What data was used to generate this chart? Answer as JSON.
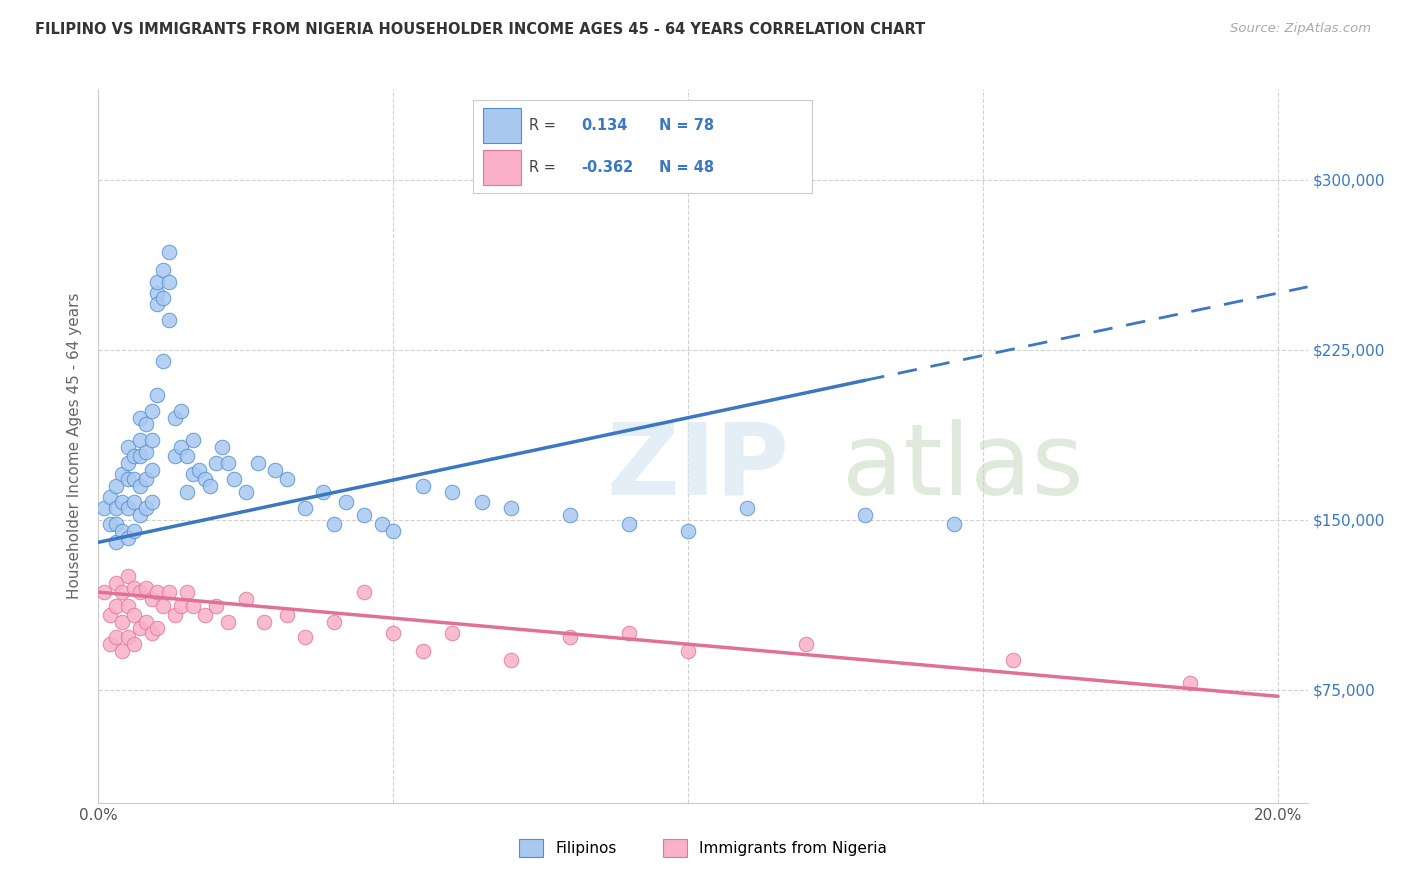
{
  "title": "FILIPINO VS IMMIGRANTS FROM NIGERIA HOUSEHOLDER INCOME AGES 45 - 64 YEARS CORRELATION CHART",
  "source": "Source: ZipAtlas.com",
  "ylabel": "Householder Income Ages 45 - 64 years",
  "xlim": [
    0.0,
    0.205
  ],
  "ylim": [
    25000,
    340000
  ],
  "yticks": [
    75000,
    150000,
    225000,
    300000
  ],
  "ytick_labels_right": [
    "$75,000",
    "$150,000",
    "$225,000",
    "$300,000"
  ],
  "xticks": [
    0.0,
    0.05,
    0.1,
    0.15,
    0.2
  ],
  "xtick_labels": [
    "0.0%",
    "",
    "",
    "",
    "20.0%"
  ],
  "blue_R": 0.134,
  "blue_N": 78,
  "pink_R": -0.362,
  "pink_N": 48,
  "blue_fill": "#A8C8F0",
  "pink_fill": "#F9B0C8",
  "blue_edge": "#5090D0",
  "pink_edge": "#E07898",
  "blue_line": "#3A78C3",
  "pink_line": "#E07098",
  "grid_color": "#CCCCCC",
  "legend1_label": "Filipinos",
  "legend2_label": "Immigrants from Nigeria",
  "blue_scatter_x": [
    0.001,
    0.002,
    0.002,
    0.003,
    0.003,
    0.003,
    0.003,
    0.004,
    0.004,
    0.004,
    0.005,
    0.005,
    0.005,
    0.005,
    0.005,
    0.006,
    0.006,
    0.006,
    0.006,
    0.007,
    0.007,
    0.007,
    0.007,
    0.007,
    0.008,
    0.008,
    0.008,
    0.008,
    0.009,
    0.009,
    0.009,
    0.009,
    0.01,
    0.01,
    0.01,
    0.01,
    0.011,
    0.011,
    0.011,
    0.012,
    0.012,
    0.012,
    0.013,
    0.013,
    0.014,
    0.014,
    0.015,
    0.015,
    0.016,
    0.016,
    0.017,
    0.018,
    0.019,
    0.02,
    0.021,
    0.022,
    0.023,
    0.025,
    0.027,
    0.03,
    0.032,
    0.035,
    0.038,
    0.04,
    0.042,
    0.045,
    0.048,
    0.05,
    0.055,
    0.06,
    0.065,
    0.07,
    0.08,
    0.09,
    0.1,
    0.11,
    0.13,
    0.145
  ],
  "blue_scatter_y": [
    155000,
    148000,
    160000,
    165000,
    155000,
    148000,
    140000,
    170000,
    158000,
    145000,
    175000,
    182000,
    168000,
    155000,
    142000,
    178000,
    168000,
    158000,
    145000,
    185000,
    195000,
    178000,
    165000,
    152000,
    192000,
    180000,
    168000,
    155000,
    198000,
    185000,
    172000,
    158000,
    205000,
    250000,
    255000,
    245000,
    260000,
    248000,
    220000,
    268000,
    255000,
    238000,
    195000,
    178000,
    198000,
    182000,
    178000,
    162000,
    185000,
    170000,
    172000,
    168000,
    165000,
    175000,
    182000,
    175000,
    168000,
    162000,
    175000,
    172000,
    168000,
    155000,
    162000,
    148000,
    158000,
    152000,
    148000,
    145000,
    165000,
    162000,
    158000,
    155000,
    152000,
    148000,
    145000,
    155000,
    152000,
    148000
  ],
  "pink_scatter_x": [
    0.001,
    0.002,
    0.002,
    0.003,
    0.003,
    0.003,
    0.004,
    0.004,
    0.004,
    0.005,
    0.005,
    0.005,
    0.006,
    0.006,
    0.006,
    0.007,
    0.007,
    0.008,
    0.008,
    0.009,
    0.009,
    0.01,
    0.01,
    0.011,
    0.012,
    0.013,
    0.014,
    0.015,
    0.016,
    0.018,
    0.02,
    0.022,
    0.025,
    0.028,
    0.032,
    0.035,
    0.04,
    0.045,
    0.05,
    0.055,
    0.06,
    0.07,
    0.08,
    0.09,
    0.1,
    0.12,
    0.155,
    0.185
  ],
  "pink_scatter_y": [
    118000,
    108000,
    95000,
    122000,
    112000,
    98000,
    118000,
    105000,
    92000,
    125000,
    112000,
    98000,
    120000,
    108000,
    95000,
    118000,
    102000,
    120000,
    105000,
    115000,
    100000,
    118000,
    102000,
    112000,
    118000,
    108000,
    112000,
    118000,
    112000,
    108000,
    112000,
    105000,
    115000,
    105000,
    108000,
    98000,
    105000,
    118000,
    100000,
    92000,
    100000,
    88000,
    98000,
    100000,
    92000,
    95000,
    88000,
    78000
  ]
}
